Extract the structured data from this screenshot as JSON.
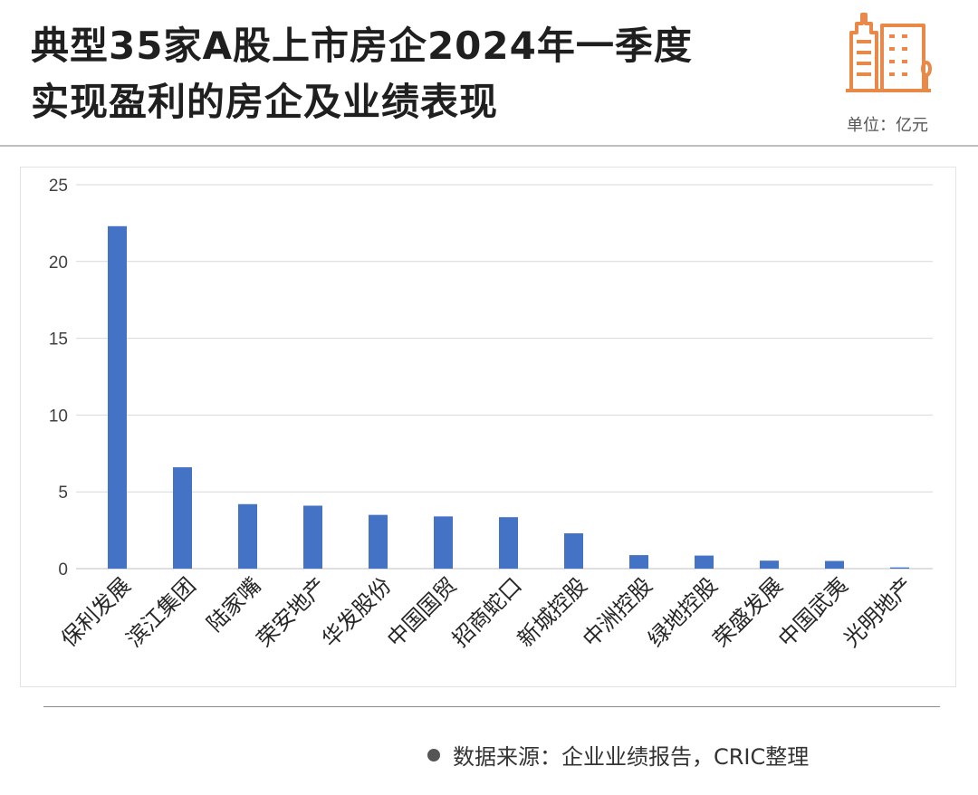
{
  "header": {
    "title_line1": "典型35家A股上市房企2024年一季度",
    "title_line2": "实现盈利的房企及业绩表现",
    "unit": "单位：亿元",
    "icon": "building-icon"
  },
  "footer": {
    "source": "数据来源：企业业绩报告，CRIC整理"
  },
  "colors": {
    "bar": "#4472C4",
    "accent": "#E8894A",
    "grid": "#D9D9D9"
  },
  "chart_data": {
    "type": "bar",
    "categories": [
      "保利发展",
      "滨江集团",
      "陆家嘴",
      "荣安地产",
      "华发股份",
      "中国国贸",
      "招商蛇口",
      "新城控股",
      "中洲控股",
      "绿地控股",
      "荣盛发展",
      "中国武夷",
      "光明地产"
    ],
    "values": [
      22.3,
      6.6,
      4.2,
      4.1,
      3.5,
      3.4,
      3.35,
      2.3,
      0.88,
      0.85,
      0.52,
      0.5,
      0.08
    ],
    "yticks": [
      "0",
      "5",
      "10",
      "15",
      "20",
      "25"
    ],
    "ylim": [
      0,
      25
    ],
    "grid": true,
    "legend": false
  }
}
